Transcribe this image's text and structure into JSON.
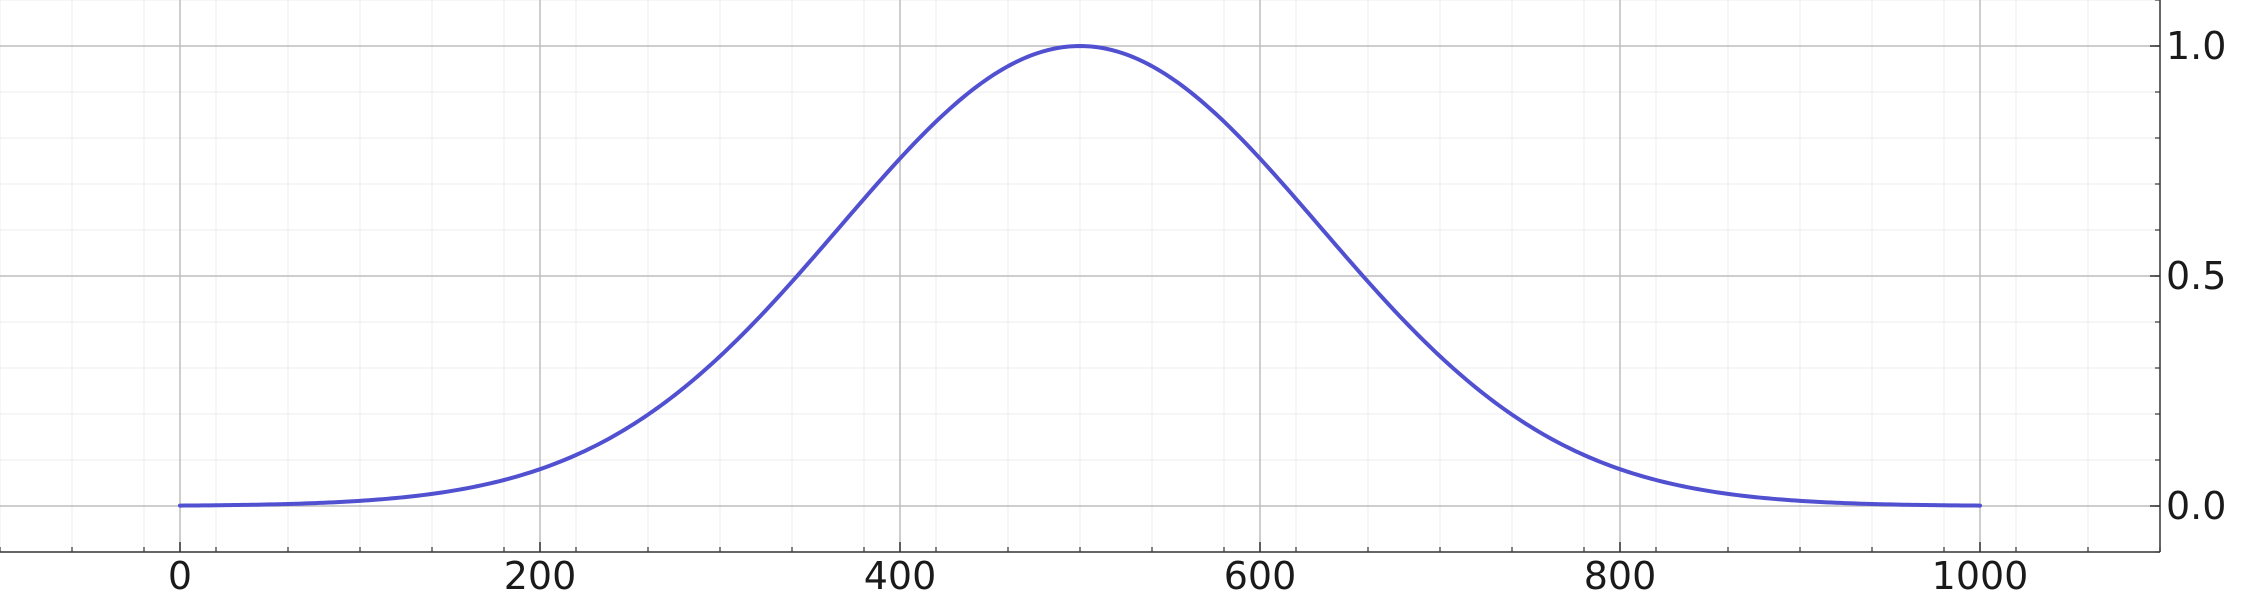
{
  "chart_data": {
    "type": "line",
    "title": "",
    "xlabel": "",
    "ylabel": "",
    "xlim": [
      -150,
      1100
    ],
    "ylim": [
      -0.1,
      1.1
    ],
    "x_ticks": [
      0,
      200,
      400,
      600,
      800,
      1000
    ],
    "x_tick_labels": [
      "0",
      "200",
      "400",
      "600",
      "800",
      "1000"
    ],
    "y_ticks": [
      0.0,
      0.5,
      1.0
    ],
    "y_tick_labels": [
      "0.0",
      "0.5",
      "1.0"
    ],
    "y_axis_side": "right",
    "grid": true,
    "minor_grid": true,
    "legend": "none",
    "line_color": "#5050d0",
    "series": [
      {
        "x": [
          0,
          50,
          100,
          150,
          200,
          250,
          300,
          350,
          400,
          450,
          500,
          550,
          600,
          650,
          700,
          750,
          800,
          850,
          900,
          950,
          1000
        ],
        "y": [
          0.0004,
          0.0017,
          0.0067,
          0.0224,
          0.0657,
          0.16,
          0.3247,
          0.5394,
          0.7665,
          0.9406,
          1.0,
          0.9406,
          0.7665,
          0.5394,
          0.3247,
          0.16,
          0.0657,
          0.0224,
          0.0067,
          0.0017,
          0.0004
        ]
      }
    ]
  }
}
